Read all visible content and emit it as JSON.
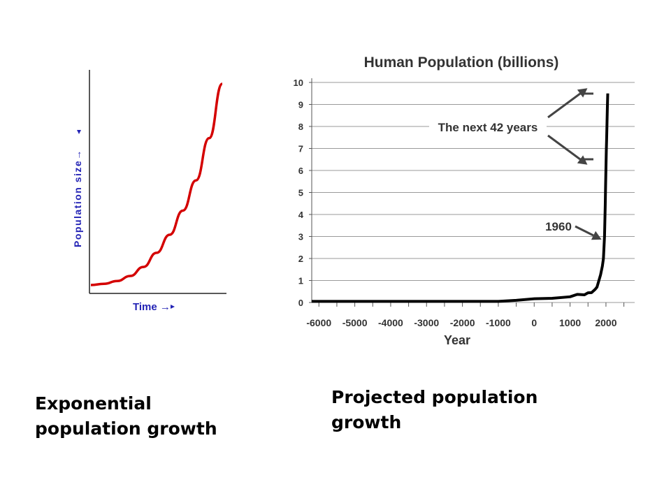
{
  "captions": {
    "left": "Exponential population growth",
    "right": "Projected population growth"
  },
  "chart_data": [
    {
      "type": "line",
      "title": "",
      "xlabel": "Time →",
      "ylabel": "Population size→",
      "grid": false,
      "ticks": false,
      "series": [
        {
          "name": "",
          "color": "#d40000",
          "x": [
            0,
            0.1,
            0.2,
            0.3,
            0.4,
            0.5,
            0.6,
            0.7,
            0.8,
            0.9,
            1.0
          ],
          "y": [
            0.0,
            0.006,
            0.02,
            0.045,
            0.09,
            0.16,
            0.25,
            0.37,
            0.52,
            0.73,
            1.0
          ]
        }
      ]
    },
    {
      "type": "line",
      "title": "Human Population (billions)",
      "xlabel": "Year",
      "ylabel": "",
      "grid": true,
      "xlim": [
        -6200,
        2800
      ],
      "ylim": [
        0,
        10
      ],
      "xticks": [
        -6000,
        -5000,
        -4000,
        -3000,
        -2000,
        -1000,
        0,
        1000,
        2000
      ],
      "xtick_labels": [
        "-6000",
        "-5000",
        "-4000",
        "-3000",
        "-2000",
        "-1000",
        "0",
        "1000",
        "2000"
      ],
      "yticks": [
        0,
        1,
        2,
        3,
        4,
        5,
        6,
        7,
        8,
        9,
        10
      ],
      "ytick_labels": [
        "0",
        "1",
        "2",
        "3",
        "4",
        "5",
        "6",
        "7",
        "8",
        "9",
        "10"
      ],
      "annotations": [
        "The next 42 years",
        "1960"
      ],
      "series": [
        {
          "name": "",
          "color": "#000000",
          "x": [
            -6200,
            -5000,
            -4000,
            -3000,
            -2000,
            -1000,
            -500,
            0,
            500,
            1000,
            1200,
            1400,
            1500,
            1600,
            1700,
            1750,
            1800,
            1850,
            1900,
            1930,
            1960,
            1970,
            1980,
            1990,
            2000,
            2010,
            2020,
            2030,
            2040,
            2050
          ],
          "y": [
            0.05,
            0.05,
            0.05,
            0.05,
            0.05,
            0.05,
            0.1,
            0.17,
            0.19,
            0.26,
            0.37,
            0.35,
            0.44,
            0.45,
            0.6,
            0.7,
            0.98,
            1.26,
            1.65,
            2.0,
            3.0,
            3.7,
            4.4,
            5.3,
            6.1,
            6.9,
            7.5,
            8.2,
            8.9,
            9.5
          ]
        }
      ]
    }
  ]
}
